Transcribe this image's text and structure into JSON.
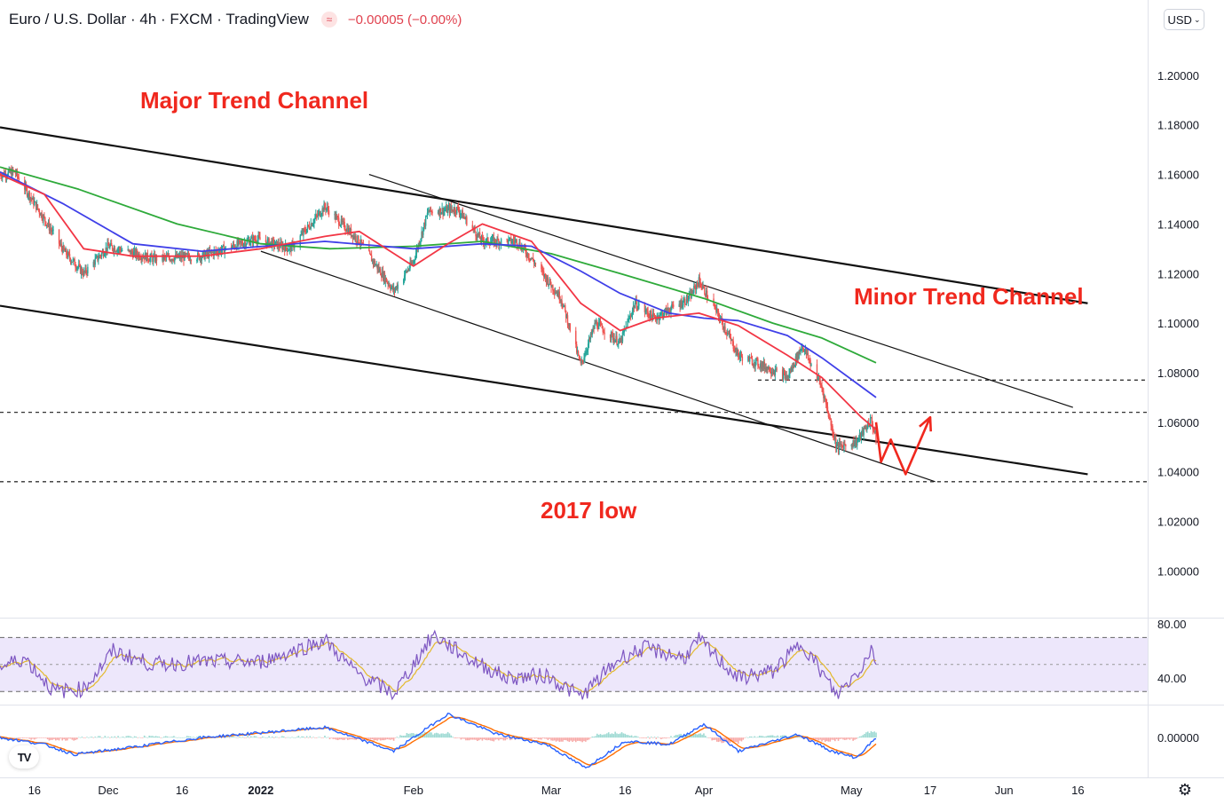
{
  "header": {
    "title": "Euro / U.S. Dollar · 4h · FXCM · TradingView",
    "change": "−0.00005 (−0.00%)",
    "currency": "USD"
  },
  "colors": {
    "up": "#26a69a",
    "down": "#ef5350",
    "ema_fast": "#f23645",
    "ema_mid": "#3f3fe8",
    "ema_slow": "#2eaa3a",
    "annotation": "#f0281e",
    "rsi": "#7e57c2",
    "rsi_signal": "#e3b92b",
    "macd": "#2962ff",
    "macd_signal": "#ff6d00"
  },
  "annotations": {
    "major": "Major Trend Channel",
    "minor": "Minor Trend Channel",
    "low": "2017 low"
  },
  "chart_data": {
    "type": "line",
    "series_kind": "candlestick-4h",
    "price_axis": {
      "ticks": [
        "1.20000",
        "1.18000",
        "1.16000",
        "1.14000",
        "1.12000",
        "1.10000",
        "1.08000",
        "1.06000",
        "1.04000",
        "1.02000",
        "1.00000"
      ],
      "values": [
        1.2,
        1.18,
        1.16,
        1.14,
        1.12,
        1.1,
        1.08,
        1.06,
        1.04,
        1.02,
        1.0
      ],
      "ylim": [
        0.9815,
        1.2175
      ]
    },
    "time_axis": {
      "ticks": [
        "16",
        "Dec",
        "16",
        "2022",
        "Feb",
        "Mar",
        "16",
        "Apr",
        "May",
        "17",
        "Jun",
        "16"
      ],
      "bold": [
        false,
        false,
        false,
        true,
        false,
        false,
        false,
        false,
        false,
        false,
        false,
        false
      ],
      "dates": [
        "2021-11-16",
        "2021-12-01",
        "2021-12-16",
        "2022-01-01",
        "2022-02-01",
        "2022-03-01",
        "2022-03-16",
        "2022-04-01",
        "2022-05-01",
        "2022-05-17",
        "2022-06-01",
        "2022-06-16"
      ]
    },
    "price_path": [
      [
        "2021-11-09",
        1.16
      ],
      [
        "2021-11-12",
        1.161
      ],
      [
        "2021-11-18",
        1.142
      ],
      [
        "2021-11-22",
        1.129
      ],
      [
        "2021-11-26",
        1.12
      ],
      [
        "2021-12-01",
        1.131
      ],
      [
        "2021-12-10",
        1.126
      ],
      [
        "2021-12-20",
        1.127
      ],
      [
        "2021-12-31",
        1.134
      ],
      [
        "2022-01-07",
        1.13
      ],
      [
        "2022-01-14",
        1.147
      ],
      [
        "2022-01-21",
        1.133
      ],
      [
        "2022-01-28",
        1.113
      ],
      [
        "2022-02-01",
        1.125
      ],
      [
        "2022-02-04",
        1.145
      ],
      [
        "2022-02-10",
        1.146
      ],
      [
        "2022-02-15",
        1.133
      ],
      [
        "2022-02-22",
        1.133
      ],
      [
        "2022-02-25",
        1.126
      ],
      [
        "2022-03-03",
        1.11
      ],
      [
        "2022-03-07",
        1.083
      ],
      [
        "2022-03-10",
        1.1
      ],
      [
        "2022-03-15",
        1.092
      ],
      [
        "2022-03-18",
        1.108
      ],
      [
        "2022-03-22",
        1.102
      ],
      [
        "2022-03-29",
        1.11
      ],
      [
        "2022-03-31",
        1.117
      ],
      [
        "2022-04-04",
        1.103
      ],
      [
        "2022-04-08",
        1.087
      ],
      [
        "2022-04-14",
        1.082
      ],
      [
        "2022-04-18",
        1.078
      ],
      [
        "2022-04-21",
        1.091
      ],
      [
        "2022-04-25",
        1.074
      ],
      [
        "2022-04-28",
        1.05
      ],
      [
        "2022-05-02",
        1.052
      ],
      [
        "2022-05-05",
        1.061
      ],
      [
        "2022-05-06",
        1.053
      ]
    ],
    "ema_fast": [
      [
        "2021-11-09",
        1.16
      ],
      [
        "2021-11-18",
        1.152
      ],
      [
        "2021-11-26",
        1.13
      ],
      [
        "2021-12-06",
        1.127
      ],
      [
        "2021-12-20",
        1.127
      ],
      [
        "2022-01-01",
        1.13
      ],
      [
        "2022-01-14",
        1.135
      ],
      [
        "2022-01-21",
        1.137
      ],
      [
        "2022-02-01",
        1.123
      ],
      [
        "2022-02-08",
        1.132
      ],
      [
        "2022-02-15",
        1.14
      ],
      [
        "2022-02-25",
        1.133
      ],
      [
        "2022-03-07",
        1.108
      ],
      [
        "2022-03-15",
        1.097
      ],
      [
        "2022-03-22",
        1.102
      ],
      [
        "2022-03-31",
        1.104
      ],
      [
        "2022-04-08",
        1.099
      ],
      [
        "2022-04-18",
        1.087
      ],
      [
        "2022-04-25",
        1.078
      ],
      [
        "2022-05-03",
        1.062
      ],
      [
        "2022-05-06",
        1.057
      ]
    ],
    "ema_mid": [
      [
        "2021-11-09",
        1.161
      ],
      [
        "2021-11-22",
        1.148
      ],
      [
        "2021-12-06",
        1.132
      ],
      [
        "2021-12-20",
        1.129
      ],
      [
        "2022-01-14",
        1.133
      ],
      [
        "2022-02-01",
        1.13
      ],
      [
        "2022-02-15",
        1.132
      ],
      [
        "2022-02-25",
        1.131
      ],
      [
        "2022-03-07",
        1.121
      ],
      [
        "2022-03-15",
        1.112
      ],
      [
        "2022-03-25",
        1.104
      ],
      [
        "2022-04-01",
        1.102
      ],
      [
        "2022-04-08",
        1.101
      ],
      [
        "2022-04-18",
        1.095
      ],
      [
        "2022-04-25",
        1.086
      ],
      [
        "2022-05-06",
        1.07
      ]
    ],
    "ema_slow": [
      [
        "2021-11-09",
        1.163
      ],
      [
        "2021-11-25",
        1.154
      ],
      [
        "2021-12-15",
        1.14
      ],
      [
        "2022-01-01",
        1.132
      ],
      [
        "2022-01-15",
        1.13
      ],
      [
        "2022-02-01",
        1.131
      ],
      [
        "2022-02-15",
        1.133
      ],
      [
        "2022-03-01",
        1.128
      ],
      [
        "2022-03-15",
        1.12
      ],
      [
        "2022-04-01",
        1.11
      ],
      [
        "2022-04-15",
        1.1
      ],
      [
        "2022-04-25",
        1.094
      ],
      [
        "2022-05-06",
        1.084
      ]
    ],
    "trendlines": {
      "major_upper": [
        [
          "2021-11-09",
          1.179
        ],
        [
          "2022-06-18",
          1.108
        ]
      ],
      "major_lower": [
        [
          "2021-11-09",
          1.107
        ],
        [
          "2022-06-18",
          1.039
        ]
      ],
      "minor_upper": [
        [
          "2022-01-23",
          1.16
        ],
        [
          "2022-06-15",
          1.066
        ]
      ],
      "minor_lower": [
        [
          "2022-01-01",
          1.129
        ],
        [
          "2022-05-18",
          1.036
        ]
      ]
    },
    "levels": [
      {
        "price": 1.077,
        "from": "2022-04-12"
      },
      {
        "price": 1.064,
        "from": "2021-11-09"
      },
      {
        "price": 1.036,
        "from": "2021-11-09"
      }
    ],
    "projection": [
      [
        "2022-05-06",
        1.06
      ],
      [
        "2022-05-07",
        1.044
      ],
      [
        "2022-05-09",
        1.053
      ],
      [
        "2022-05-12",
        1.039
      ],
      [
        "2022-05-17",
        1.062
      ]
    ],
    "rsi": {
      "ticks": [
        "80.00",
        "40.00"
      ],
      "tick_values": [
        80,
        40
      ],
      "band": [
        70,
        30
      ],
      "mid": 50,
      "ylim": [
        21,
        84
      ],
      "path": [
        [
          "2021-11-09",
          48
        ],
        [
          "2021-11-14",
          55
        ],
        [
          "2021-11-20",
          30
        ],
        [
          "2021-11-26",
          32
        ],
        [
          "2021-12-02",
          60
        ],
        [
          "2021-12-10",
          50
        ],
        [
          "2021-12-20",
          52
        ],
        [
          "2022-01-01",
          52
        ],
        [
          "2022-01-14",
          68
        ],
        [
          "2022-01-20",
          45
        ],
        [
          "2022-01-28",
          28
        ],
        [
          "2022-02-05",
          72
        ],
        [
          "2022-02-12",
          55
        ],
        [
          "2022-02-20",
          40
        ],
        [
          "2022-02-28",
          42
        ],
        [
          "2022-03-07",
          26
        ],
        [
          "2022-03-15",
          55
        ],
        [
          "2022-03-20",
          62
        ],
        [
          "2022-03-28",
          55
        ],
        [
          "2022-03-31",
          68
        ],
        [
          "2022-04-08",
          40
        ],
        [
          "2022-04-15",
          45
        ],
        [
          "2022-04-21",
          66
        ],
        [
          "2022-04-28",
          27
        ],
        [
          "2022-05-03",
          48
        ],
        [
          "2022-05-05",
          62
        ],
        [
          "2022-05-06",
          53
        ]
      ]
    },
    "macd": {
      "ticks": [
        "0.00000"
      ],
      "tick_values": [
        0
      ],
      "ylim": [
        -0.0115,
        0.0095
      ],
      "path": [
        [
          "2021-11-09",
          0.0
        ],
        [
          "2021-11-18",
          -0.002
        ],
        [
          "2021-11-24",
          -0.005
        ],
        [
          "2021-12-05",
          -0.003
        ],
        [
          "2021-12-20",
          0.0
        ],
        [
          "2022-01-14",
          0.003
        ],
        [
          "2022-01-20",
          0.0
        ],
        [
          "2022-01-28",
          -0.004
        ],
        [
          "2022-02-08",
          0.007
        ],
        [
          "2022-02-18",
          0.001
        ],
        [
          "2022-02-28",
          -0.002
        ],
        [
          "2022-03-08",
          -0.009
        ],
        [
          "2022-03-16",
          -0.001
        ],
        [
          "2022-03-25",
          -0.002
        ],
        [
          "2022-04-01",
          0.004
        ],
        [
          "2022-04-08",
          -0.004
        ],
        [
          "2022-04-20",
          0.001
        ],
        [
          "2022-04-27",
          -0.004
        ],
        [
          "2022-05-02",
          -0.006
        ],
        [
          "2022-05-06",
          0.0
        ]
      ]
    }
  }
}
